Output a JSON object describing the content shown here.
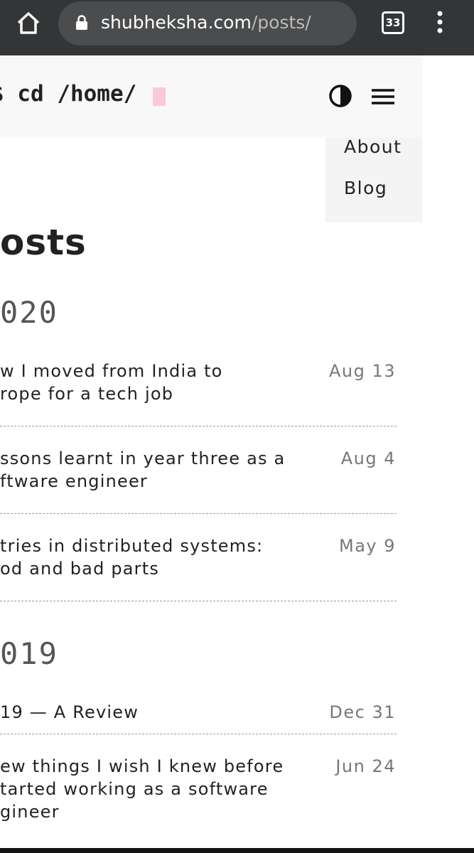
{
  "browser": {
    "url_host": "shubheksha.com",
    "url_path": "/posts/",
    "tab_count": "33"
  },
  "header": {
    "prompt": "$ cd /home/"
  },
  "menu": [
    "About",
    "Blog"
  ],
  "page_title": "osts",
  "years": [
    {
      "year": "020",
      "posts": [
        {
          "title_lines": [
            "w I moved from India to",
            "rope for a tech job"
          ],
          "date": "Aug 13"
        },
        {
          "title_lines": [
            "ssons learnt in year three as a",
            "ftware engineer"
          ],
          "date": "Aug 4"
        },
        {
          "title_lines": [
            "tries in distributed systems:",
            "od and bad parts"
          ],
          "date": "May 9"
        }
      ]
    },
    {
      "year": "019",
      "posts": [
        {
          "title_lines": [
            "19 — A Review"
          ],
          "date": "Dec 31"
        },
        {
          "title_lines": [
            "ew things I wish I knew before",
            "tarted working as a software",
            "gineer"
          ],
          "date": "Jun 24"
        }
      ]
    }
  ]
}
